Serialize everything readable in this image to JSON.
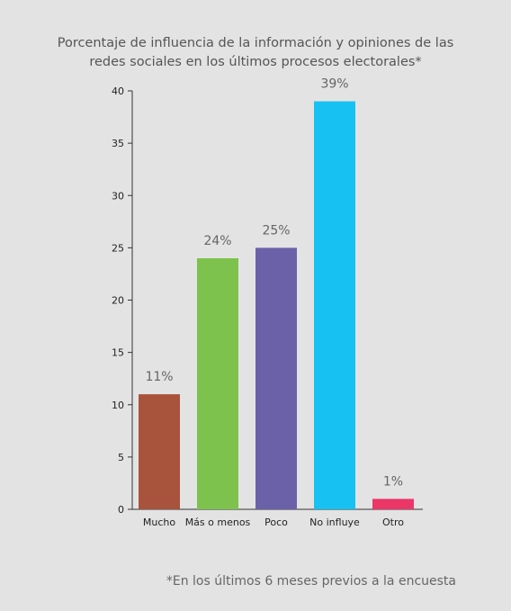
{
  "chart_data": {
    "type": "bar",
    "title_lines": [
      "Porcentaje de influencia de la información y opiniones de las",
      "redes sociales en los últimos procesos electorales*"
    ],
    "categories": [
      "Mucho",
      "Más o menos",
      "Poco",
      "No influye",
      "Otro"
    ],
    "values": [
      11,
      24,
      25,
      39,
      1
    ],
    "data_labels": [
      "11%",
      "24%",
      "25%",
      "39%",
      "1%"
    ],
    "colors": [
      "#a8533c",
      "#7dc24c",
      "#6b61a8",
      "#17c1f1",
      "#ea3767"
    ],
    "ylim": [
      0,
      40
    ],
    "yticks": [
      0,
      5,
      10,
      15,
      20,
      25,
      30,
      35,
      40
    ],
    "grid": false,
    "footnote": "*En los últimos 6 meses previos a la encuesta"
  }
}
